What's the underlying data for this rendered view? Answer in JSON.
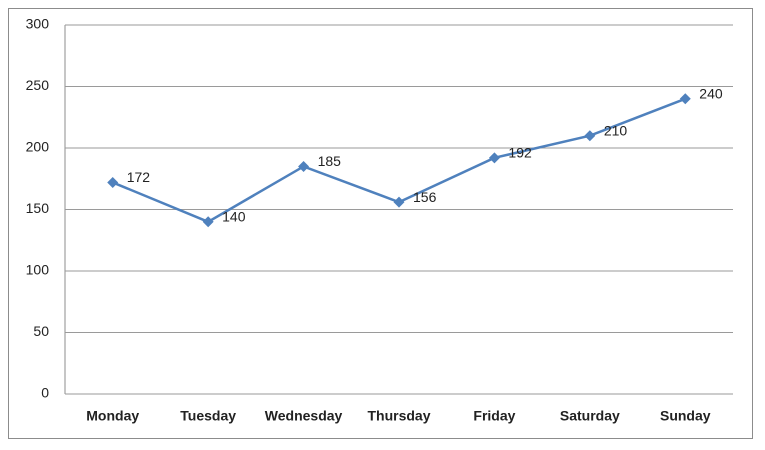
{
  "chart_data": {
    "type": "line",
    "categories": [
      "Monday",
      "Tuesday",
      "Wednesday",
      "Thursday",
      "Friday",
      "Saturday",
      "Sunday"
    ],
    "values": [
      172,
      140,
      185,
      156,
      192,
      210,
      240
    ],
    "color": "#4f81bd",
    "ylim": [
      0,
      300
    ],
    "yticks": [
      0,
      50,
      100,
      150,
      200,
      250,
      300
    ],
    "grid": true
  }
}
